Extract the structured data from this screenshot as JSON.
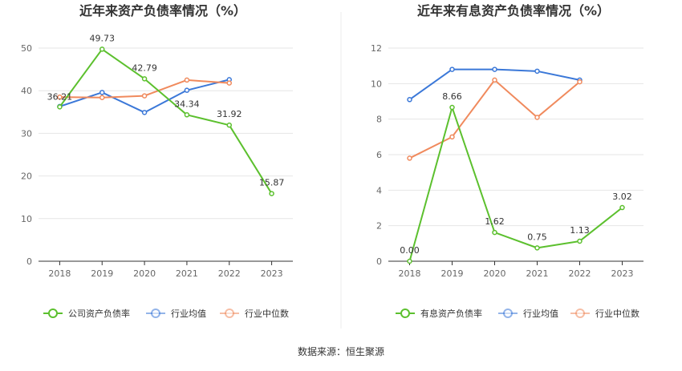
{
  "source_text": "数据来源：恒生聚源",
  "colors": {
    "company": "#5cc02e",
    "industry_avg": "#3b78d8",
    "industry_median": "#f08a5d",
    "grid": "#e6e6e6",
    "axis": "#333333",
    "divider": "#eeeeee"
  },
  "chart_data": [
    {
      "type": "line",
      "title": "近年来资产负债率情况（%）",
      "categories": [
        "2018",
        "2019",
        "2020",
        "2021",
        "2022",
        "2023"
      ],
      "ylim": [
        0,
        50
      ],
      "yticks": [
        0,
        10,
        20,
        30,
        40,
        50
      ],
      "series": [
        {
          "key": "company",
          "name": "公司资产负债率",
          "values": [
            36.21,
            49.73,
            42.79,
            34.34,
            31.92,
            15.87
          ],
          "labels": [
            "36.21",
            "49.73",
            "42.79",
            "34.34",
            "31.92",
            "15.87"
          ]
        },
        {
          "key": "industry_avg",
          "name": "行业均值",
          "values": [
            36.3,
            39.6,
            34.9,
            40.1,
            42.6,
            null
          ]
        },
        {
          "key": "industry_median",
          "name": "行业中位数",
          "values": [
            38.5,
            38.4,
            38.8,
            42.5,
            41.8,
            null
          ]
        }
      ]
    },
    {
      "type": "line",
      "title": "近年来有息资产负债率情况（%）",
      "categories": [
        "2018",
        "2019",
        "2020",
        "2021",
        "2022",
        "2023"
      ],
      "ylim": [
        0,
        12
      ],
      "yticks": [
        0,
        2,
        4,
        6,
        8,
        10,
        12
      ],
      "series": [
        {
          "key": "company",
          "name": "有息资产负债率",
          "values": [
            0.0,
            8.66,
            1.62,
            0.75,
            1.13,
            3.02
          ],
          "labels": [
            "0.00",
            "8.66",
            "1.62",
            "0.75",
            "1.13",
            "3.02"
          ]
        },
        {
          "key": "industry_avg",
          "name": "行业均值",
          "values": [
            9.1,
            10.8,
            10.8,
            10.7,
            10.2,
            null
          ]
        },
        {
          "key": "industry_median",
          "name": "行业中位数",
          "values": [
            5.8,
            7.0,
            10.2,
            8.1,
            10.1,
            null
          ]
        }
      ]
    }
  ]
}
